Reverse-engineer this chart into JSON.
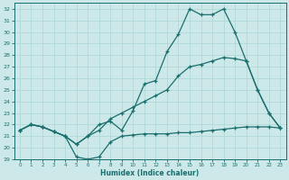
{
  "xlabel": "Humidex (Indice chaleur)",
  "bg_color": "#cce8e8",
  "line_color": "#1a6e6e",
  "grid_color": "#b0d8d8",
  "xlim": [
    -0.5,
    23.5
  ],
  "ylim": [
    19,
    32.5
  ],
  "yticks": [
    19,
    20,
    21,
    22,
    23,
    24,
    25,
    26,
    27,
    28,
    29,
    30,
    31,
    32
  ],
  "xticks": [
    0,
    1,
    2,
    3,
    4,
    5,
    6,
    7,
    8,
    9,
    10,
    11,
    12,
    13,
    14,
    15,
    16,
    17,
    18,
    19,
    20,
    21,
    22,
    23
  ],
  "line1_x": [
    0,
    1,
    2,
    3,
    4,
    5,
    6,
    7,
    8,
    9,
    10,
    11,
    12,
    13,
    14,
    15,
    16,
    17,
    18,
    19,
    20,
    21,
    22,
    23
  ],
  "line1_y": [
    21.5,
    22.0,
    21.8,
    21.4,
    21.0,
    19.2,
    19.0,
    19.2,
    20.5,
    21.0,
    21.1,
    21.2,
    21.2,
    21.2,
    21.3,
    21.3,
    21.4,
    21.5,
    21.6,
    21.7,
    21.8,
    21.8,
    21.8,
    21.7
  ],
  "line2_x": [
    0,
    1,
    2,
    3,
    4,
    5,
    6,
    7,
    8,
    9,
    10,
    11,
    12,
    13,
    14,
    15,
    16,
    17,
    18,
    19,
    20,
    21,
    22,
    23
  ],
  "line2_y": [
    21.5,
    22.0,
    21.8,
    21.4,
    21.0,
    20.3,
    21.0,
    22.0,
    22.3,
    21.5,
    23.2,
    25.5,
    25.8,
    28.3,
    29.8,
    32.0,
    31.5,
    31.5,
    32.0,
    30.0,
    27.5,
    25.0,
    23.0,
    21.7
  ],
  "line3_x": [
    0,
    1,
    2,
    3,
    4,
    5,
    6,
    7,
    8,
    9,
    10,
    11,
    12,
    13,
    14,
    15,
    16,
    17,
    18,
    19,
    20,
    21,
    22,
    23
  ],
  "line3_y": [
    21.5,
    22.0,
    21.8,
    21.4,
    21.0,
    20.3,
    21.0,
    21.5,
    22.5,
    23.0,
    23.5,
    24.0,
    24.5,
    25.0,
    26.2,
    27.0,
    27.2,
    27.5,
    27.8,
    27.7,
    27.5,
    25.0,
    23.0,
    21.7
  ],
  "lw": 0.9,
  "marker": "+",
  "markersize": 3.5,
  "mew": 0.9
}
